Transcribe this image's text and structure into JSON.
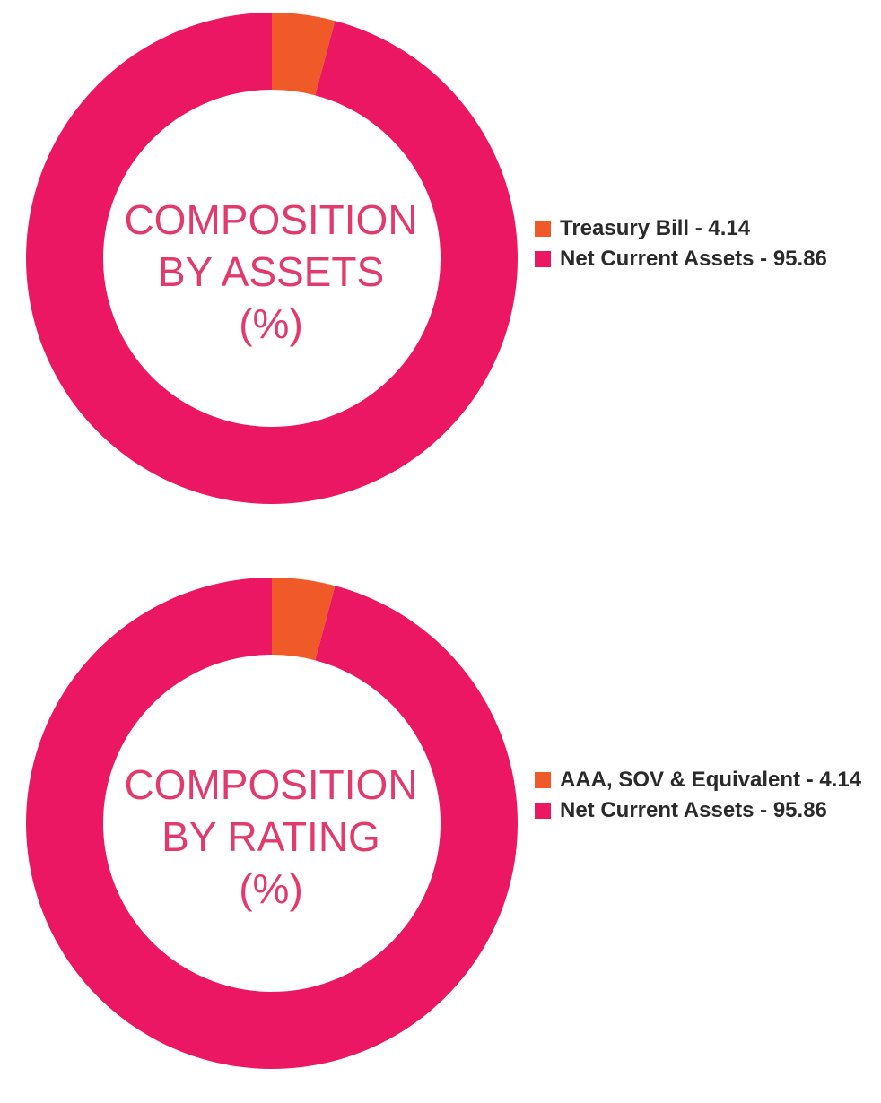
{
  "chart_data": [
    {
      "type": "pie",
      "title_lines": [
        "COMPOSITION",
        "BY ASSETS",
        "(%)"
      ],
      "slices": [
        {
          "label": "Treasury Bill - 4.14",
          "value": 4.14,
          "color": "#f05a28"
        },
        {
          "label": "Net Current Assets - 95.86",
          "value": 95.86,
          "color": "#ec1763"
        }
      ],
      "legend_position": "right"
    },
    {
      "type": "pie",
      "title_lines": [
        "COMPOSITION",
        "BY RATING",
        "(%)"
      ],
      "slices": [
        {
          "label": "AAA, SOV & Equivalent - 4.14",
          "value": 4.14,
          "color": "#f05a28"
        },
        {
          "label": "Net Current Assets - 95.86",
          "value": 95.86,
          "color": "#ec1763"
        }
      ],
      "legend_position": "right"
    }
  ]
}
